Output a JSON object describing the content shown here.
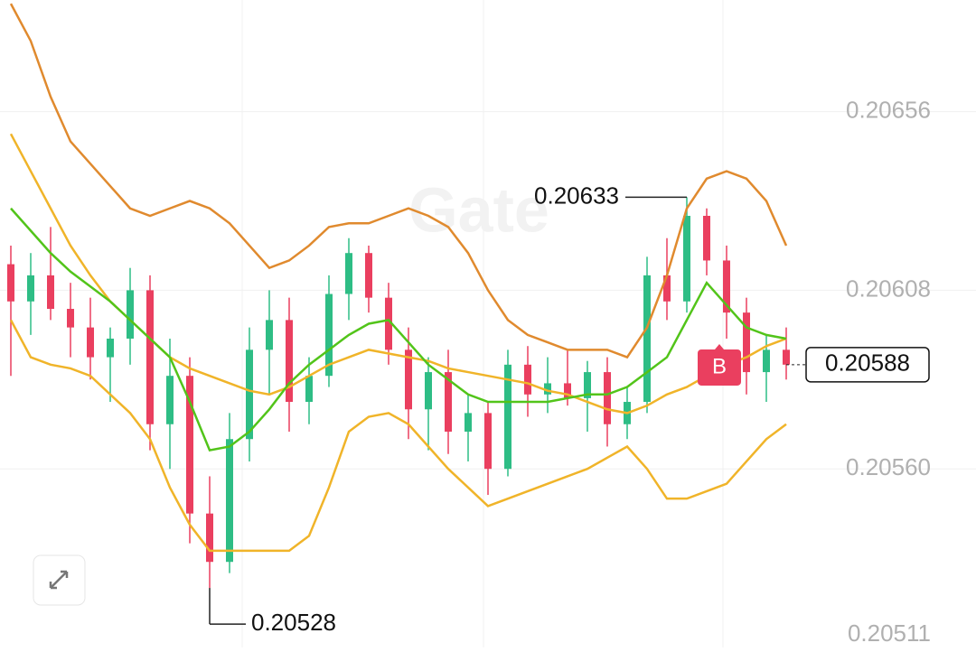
{
  "chart_data": {
    "type": "candlestick",
    "watermark": "Gate",
    "ylim": [
      0.20512,
      0.20686
    ],
    "yticks": [
      0.20656,
      0.20608,
      {
        "value": 0.2056,
        "label": "0.20560"
      },
      0.20511
    ],
    "grid": true,
    "up_color": "#2ebd85",
    "down_color": "#ea3f5f",
    "open": [
      0.20615,
      0.20605,
      0.20612,
      0.20603,
      0.20598,
      0.2059,
      0.20595,
      0.20608,
      0.20572,
      0.20585,
      0.20548,
      0.20535,
      0.20568,
      0.20592,
      0.206,
      0.20578,
      0.20585,
      0.20607,
      0.20618,
      0.20606,
      0.20592,
      0.20576,
      0.20586,
      0.2057,
      0.20575,
      0.2056,
      0.20588,
      0.2058,
      0.20583,
      0.20579,
      0.20586,
      0.20572,
      0.20578,
      0.20612,
      0.20605,
      0.20628,
      0.20616,
      0.20602,
      0.20586,
      0.20592
    ],
    "high": [
      0.2062,
      0.20618,
      0.20625,
      0.2061,
      0.20606,
      0.20598,
      0.20614,
      0.20612,
      0.20595,
      0.2059,
      0.20558,
      0.20575,
      0.20598,
      0.20608,
      0.20606,
      0.2059,
      0.20612,
      0.20622,
      0.2062,
      0.2061,
      0.20598,
      0.2059,
      0.20592,
      0.2058,
      0.20578,
      0.20592,
      0.20593,
      0.2059,
      0.20592,
      0.20589,
      0.2059,
      0.20582,
      0.20617,
      0.20622,
      0.20633,
      0.2063,
      0.2062,
      0.20606,
      0.20596,
      0.20598
    ],
    "low": [
      0.20585,
      0.20596,
      0.206,
      0.2059,
      0.20584,
      0.20578,
      0.20588,
      0.20565,
      0.2056,
      0.2054,
      0.20528,
      0.20532,
      0.20562,
      0.2058,
      0.2057,
      0.20572,
      0.20582,
      0.206,
      0.20602,
      0.20588,
      0.20568,
      0.20565,
      0.20564,
      0.20562,
      0.20553,
      0.20558,
      0.20574,
      0.20575,
      0.20577,
      0.2057,
      0.20566,
      0.20568,
      0.20575,
      0.206,
      0.20602,
      0.20612,
      0.20595,
      0.2058,
      0.20578,
      0.20584
    ],
    "close": [
      0.20605,
      0.20612,
      0.20603,
      0.20598,
      0.2059,
      0.20595,
      0.20608,
      0.20572,
      0.20585,
      0.20548,
      0.20535,
      0.20568,
      0.20592,
      0.206,
      0.20578,
      0.20585,
      0.20607,
      0.20618,
      0.20606,
      0.20592,
      0.20576,
      0.20586,
      0.2057,
      0.20575,
      0.2056,
      0.20588,
      0.2058,
      0.20583,
      0.20579,
      0.20586,
      0.20572,
      0.20578,
      0.20612,
      0.20605,
      0.20628,
      0.20616,
      0.20602,
      0.20586,
      0.20592,
      0.20588
    ],
    "series": [
      {
        "color": "#e08a2e",
        "values": [
          0.20685,
          0.20675,
          0.2066,
          0.20648,
          0.20642,
          0.20636,
          0.2063,
          0.20628,
          0.2063,
          0.20632,
          0.2063,
          0.20626,
          0.2062,
          0.20614,
          0.20616,
          0.2062,
          0.20625,
          0.20626,
          0.20626,
          0.20628,
          0.2063,
          0.20628,
          0.20625,
          0.20618,
          0.20608,
          0.206,
          0.20596,
          0.20594,
          0.20592,
          0.20592,
          0.20592,
          0.2059,
          0.20598,
          0.20612,
          0.2063,
          0.20638,
          0.2064,
          0.20638,
          0.20632,
          0.2062
        ]
      },
      {
        "color": "#f0b429",
        "values": [
          0.206,
          0.2059,
          0.20588,
          0.20587,
          0.20585,
          0.2058,
          0.20575,
          0.20568,
          0.20555,
          0.20545,
          0.20538,
          0.20538,
          0.20538,
          0.20538,
          0.20538,
          0.20542,
          0.20555,
          0.2057,
          0.20574,
          0.20575,
          0.20572,
          0.20566,
          0.2056,
          0.20555,
          0.2055,
          0.20552,
          0.20554,
          0.20556,
          0.20558,
          0.2056,
          0.20563,
          0.20566,
          0.2056,
          0.20552,
          0.20552,
          0.20554,
          0.20556,
          0.20562,
          0.20568,
          0.20572
        ]
      },
      {
        "color": "#f0b429",
        "values": [
          0.2065,
          0.2064,
          0.2063,
          0.2062,
          0.20612,
          0.20605,
          0.206,
          0.20595,
          0.2059,
          0.20587,
          0.20585,
          0.20583,
          0.20581,
          0.2058,
          0.20582,
          0.20585,
          0.20588,
          0.2059,
          0.20592,
          0.20591,
          0.2059,
          0.20589,
          0.20587,
          0.20586,
          0.20585,
          0.20584,
          0.20583,
          0.20581,
          0.2058,
          0.20578,
          0.20576,
          0.20575,
          0.20577,
          0.2058,
          0.20582,
          0.20585,
          0.20588,
          0.2059,
          0.20593,
          0.20595
        ]
      },
      {
        "color": "#52c41a",
        "values": [
          0.2063,
          0.20624,
          0.20618,
          0.20613,
          0.20609,
          0.20605,
          0.206,
          0.20595,
          0.2059,
          0.20578,
          0.20565,
          0.20566,
          0.2057,
          0.20576,
          0.20583,
          0.20588,
          0.20592,
          0.20596,
          0.20599,
          0.206,
          0.20594,
          0.20588,
          0.20584,
          0.2058,
          0.20578,
          0.20578,
          0.20578,
          0.20578,
          0.20579,
          0.2058,
          0.2058,
          0.20582,
          0.20586,
          0.2059,
          0.206,
          0.2061,
          0.20604,
          0.20598,
          0.20596,
          0.20595
        ]
      }
    ],
    "max_label": 0.20633,
    "min_label": 0.20528,
    "last_price": 0.20588,
    "marker": "B"
  }
}
